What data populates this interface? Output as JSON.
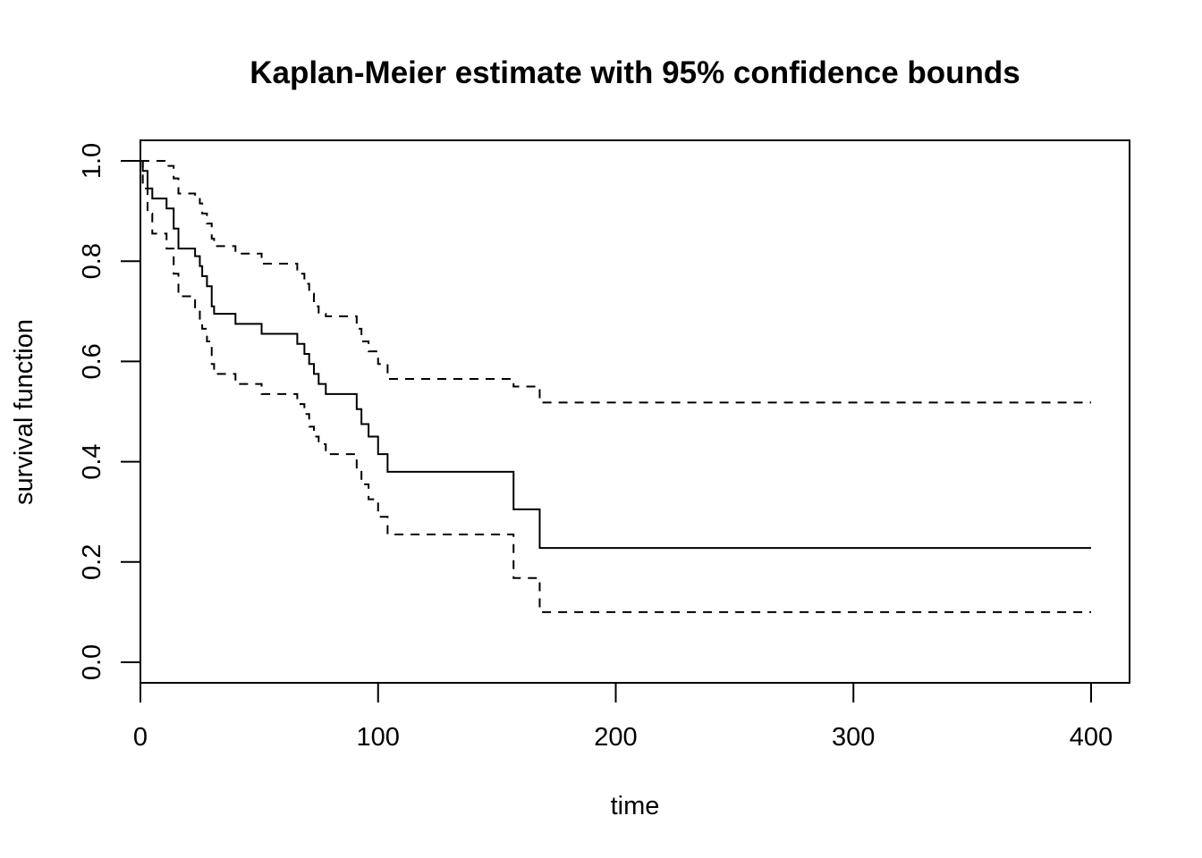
{
  "chart_data": {
    "type": "line",
    "title": "Kaplan-Meier estimate with 95% confidence bounds",
    "xlabel": "time",
    "ylabel": "survival function",
    "xlim": [
      0,
      400
    ],
    "ylim": [
      0,
      1
    ],
    "x_ticks": [
      "0",
      "100",
      "200",
      "300",
      "400"
    ],
    "y_ticks": [
      "0.0",
      "0.2",
      "0.4",
      "0.6",
      "0.8",
      "1.0"
    ],
    "grid": false,
    "legend": "none",
    "step": true,
    "series": [
      {
        "style": "solid",
        "x": [
          0,
          1,
          3,
          5,
          11,
          14,
          16,
          23,
          25,
          26,
          28,
          30,
          31,
          40,
          51,
          66,
          69,
          71,
          73,
          75,
          78,
          91,
          93,
          96,
          100,
          104,
          157,
          168,
          400
        ],
        "y": [
          1.0,
          0.98,
          0.945,
          0.925,
          0.905,
          0.865,
          0.825,
          0.81,
          0.79,
          0.77,
          0.75,
          0.71,
          0.695,
          0.675,
          0.655,
          0.635,
          0.615,
          0.595,
          0.575,
          0.555,
          0.535,
          0.505,
          0.475,
          0.45,
          0.415,
          0.38,
          0.305,
          0.228,
          0.228
        ]
      },
      {
        "style": "dashed",
        "x": [
          0,
          1,
          3,
          5,
          11,
          14,
          16,
          23,
          25,
          26,
          28,
          30,
          31,
          40,
          51,
          66,
          69,
          71,
          73,
          75,
          78,
          91,
          93,
          96,
          100,
          104,
          157,
          168,
          400
        ],
        "y": [
          1.0,
          1.0,
          1.0,
          1.0,
          0.99,
          0.965,
          0.935,
          0.93,
          0.915,
          0.895,
          0.875,
          0.845,
          0.83,
          0.815,
          0.795,
          0.775,
          0.755,
          0.735,
          0.71,
          0.695,
          0.69,
          0.665,
          0.64,
          0.62,
          0.595,
          0.565,
          0.55,
          0.518,
          0.518
        ]
      },
      {
        "style": "dashed",
        "x": [
          0,
          1,
          3,
          5,
          11,
          14,
          16,
          23,
          25,
          26,
          28,
          30,
          31,
          40,
          51,
          66,
          69,
          71,
          73,
          75,
          78,
          91,
          93,
          96,
          100,
          104,
          157,
          168,
          400
        ],
        "y": [
          1.0,
          0.945,
          0.895,
          0.855,
          0.825,
          0.775,
          0.73,
          0.705,
          0.68,
          0.665,
          0.64,
          0.595,
          0.575,
          0.555,
          0.535,
          0.515,
          0.495,
          0.47,
          0.45,
          0.435,
          0.415,
          0.385,
          0.355,
          0.325,
          0.29,
          0.255,
          0.168,
          0.1,
          0.1
        ]
      }
    ]
  }
}
